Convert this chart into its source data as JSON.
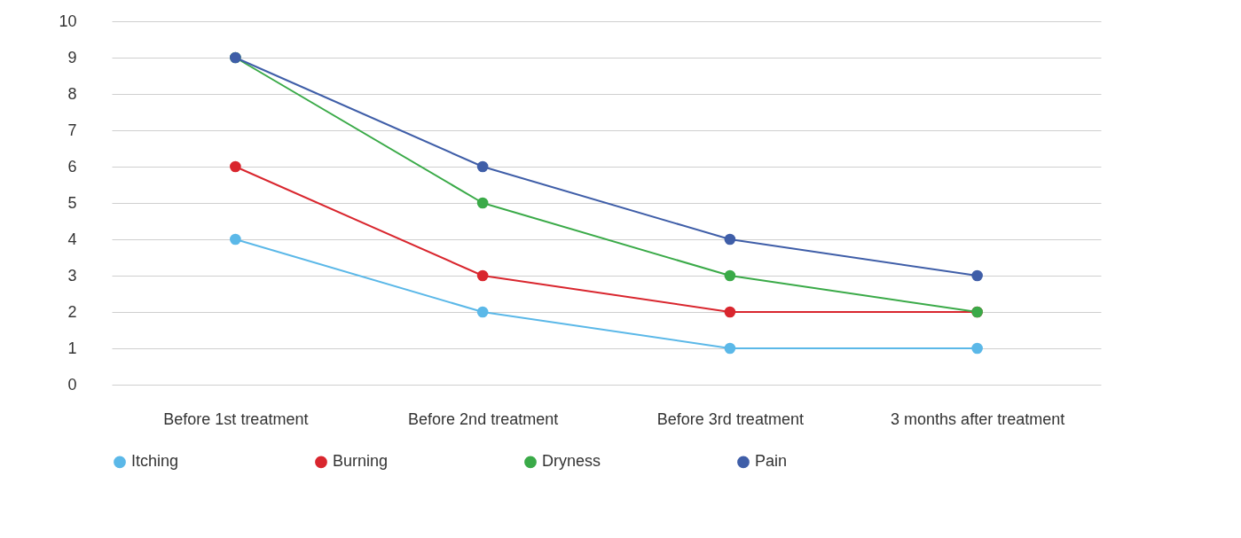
{
  "chart_data": {
    "type": "line",
    "categories": [
      "Before 1st treatment",
      "Before 2nd treatment",
      "Before 3rd treatment",
      "3 months after treatment"
    ],
    "series": [
      {
        "name": "Itching",
        "color": "#5bb8e8",
        "values": [
          4,
          2,
          1,
          1
        ]
      },
      {
        "name": "Burning",
        "color": "#d9262e",
        "values": [
          6,
          3,
          2,
          2
        ]
      },
      {
        "name": "Dryness",
        "color": "#3aaa48",
        "values": [
          9,
          5,
          3,
          2
        ]
      },
      {
        "name": "Pain",
        "color": "#3f5ea8",
        "values": [
          9,
          6,
          4,
          3
        ]
      }
    ],
    "ylim": [
      0,
      10
    ],
    "yticks": [
      0,
      1,
      2,
      3,
      4,
      5,
      6,
      7,
      8,
      9,
      10
    ],
    "grid": "y",
    "legend": "bottom",
    "marker": "circle",
    "line_style": "solid"
  }
}
